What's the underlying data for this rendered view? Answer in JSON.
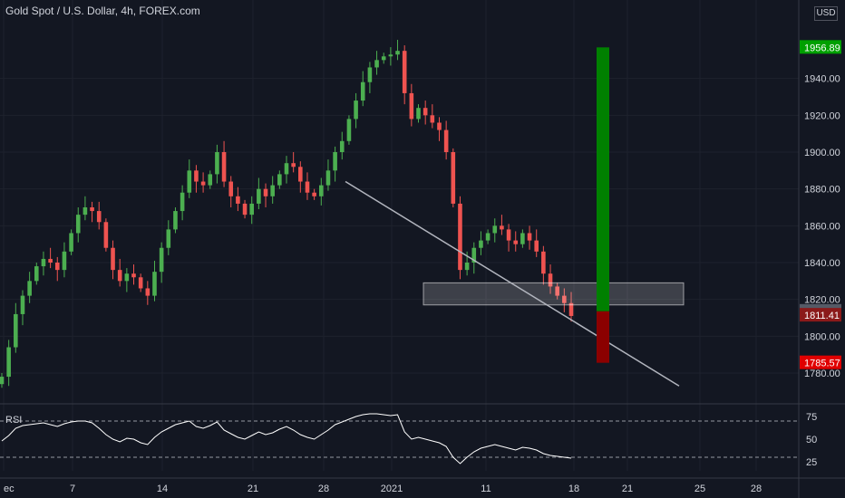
{
  "header": {
    "title": "Gold Spot / U.S. Dollar, 4h, FOREX.com",
    "currency": "USD"
  },
  "rsi_label": "RSI",
  "colors": {
    "background": "#131722",
    "up": "#26a69a",
    "up_candle": "#4caf50",
    "down": "#ef5350",
    "rsi_line": "#ffffff",
    "target_bar": "#008000",
    "stop_bar": "#8b0000",
    "axis_text": "#d1d4dc"
  },
  "chart_data": [
    {
      "type": "candlestick",
      "title": "Gold Spot / U.S. Dollar, 4h, FOREX.com",
      "x_tick_labels": [
        "ec",
        "7",
        "14",
        "21",
        "28",
        "2021",
        "11",
        "18",
        "21",
        "25",
        "28"
      ],
      "y_tick_labels": [
        "1780.00",
        "1800.00",
        "1820.00",
        "1840.00",
        "1860.00",
        "1880.00",
        "1900.00",
        "1920.00",
        "1940.00"
      ],
      "ylim": [
        1765,
        1985
      ],
      "price_labels": [
        {
          "text": "1956.89",
          "value": 1956.89,
          "color": "#00a000"
        },
        {
          "text": "1813.54",
          "value": 1813.54,
          "color": "#555a66"
        },
        {
          "text": "1811.41",
          "value": 1811.41,
          "color": "#8b1a1a"
        },
        {
          "text": "1785.57",
          "value": 1785.57,
          "color": "#e00000"
        }
      ],
      "series": [
        {
          "name": "close",
          "values": [
            1778,
            1794,
            1812,
            1822,
            1830,
            1838,
            1842,
            1840,
            1836,
            1846,
            1856,
            1866,
            1870,
            1868,
            1862,
            1848,
            1836,
            1830,
            1834,
            1832,
            1826,
            1822,
            1835,
            1848,
            1858,
            1868,
            1878,
            1890,
            1884,
            1882,
            1888,
            1900,
            1884,
            1876,
            1872,
            1866,
            1872,
            1880,
            1876,
            1882,
            1888,
            1894,
            1892,
            1884,
            1878,
            1876,
            1882,
            1890,
            1900,
            1906,
            1918,
            1928,
            1938,
            1946,
            1950,
            1952,
            1953,
            1955,
            1932,
            1918,
            1924,
            1920,
            1916,
            1912,
            1900,
            1872,
            1836,
            1840,
            1848,
            1852,
            1856,
            1860,
            1858,
            1852,
            1850,
            1856,
            1852,
            1846,
            1834,
            1827,
            1822,
            1818,
            1811
          ]
        }
      ],
      "overlays": {
        "trendline": {
          "from": [
            28.8,
            1884
          ],
          "to": [
            44.0,
            1801
          ]
        },
        "support_zone": {
          "x_from": 30.1,
          "x_to": 39.0,
          "y_from": 1817,
          "y_to": 1829
        },
        "target_bar": {
          "y_from": 1813.54,
          "y_to": 1956.89
        },
        "stop_bar": {
          "y_from": 1785.57,
          "y_to": 1813.54
        }
      }
    },
    {
      "type": "line",
      "title": "RSI",
      "y_tick_labels": [
        "25",
        "50",
        "75"
      ],
      "ylim": [
        20,
        80
      ],
      "levels": [
        70,
        30
      ],
      "series": [
        {
          "name": "RSI",
          "values": [
            48,
            54,
            62,
            65,
            66,
            67,
            68,
            66,
            64,
            67,
            69,
            70,
            70,
            68,
            62,
            55,
            50,
            47,
            51,
            50,
            46,
            44,
            52,
            58,
            62,
            66,
            68,
            70,
            64,
            62,
            65,
            69,
            60,
            56,
            52,
            50,
            54,
            58,
            55,
            57,
            61,
            64,
            60,
            55,
            52,
            50,
            55,
            60,
            66,
            69,
            72,
            75,
            77,
            78,
            78,
            77,
            76,
            77,
            58,
            50,
            52,
            50,
            48,
            46,
            42,
            30,
            23,
            30,
            36,
            40,
            42,
            44,
            42,
            40,
            38,
            41,
            40,
            38,
            34,
            32,
            31,
            30,
            29
          ]
        }
      ]
    }
  ]
}
